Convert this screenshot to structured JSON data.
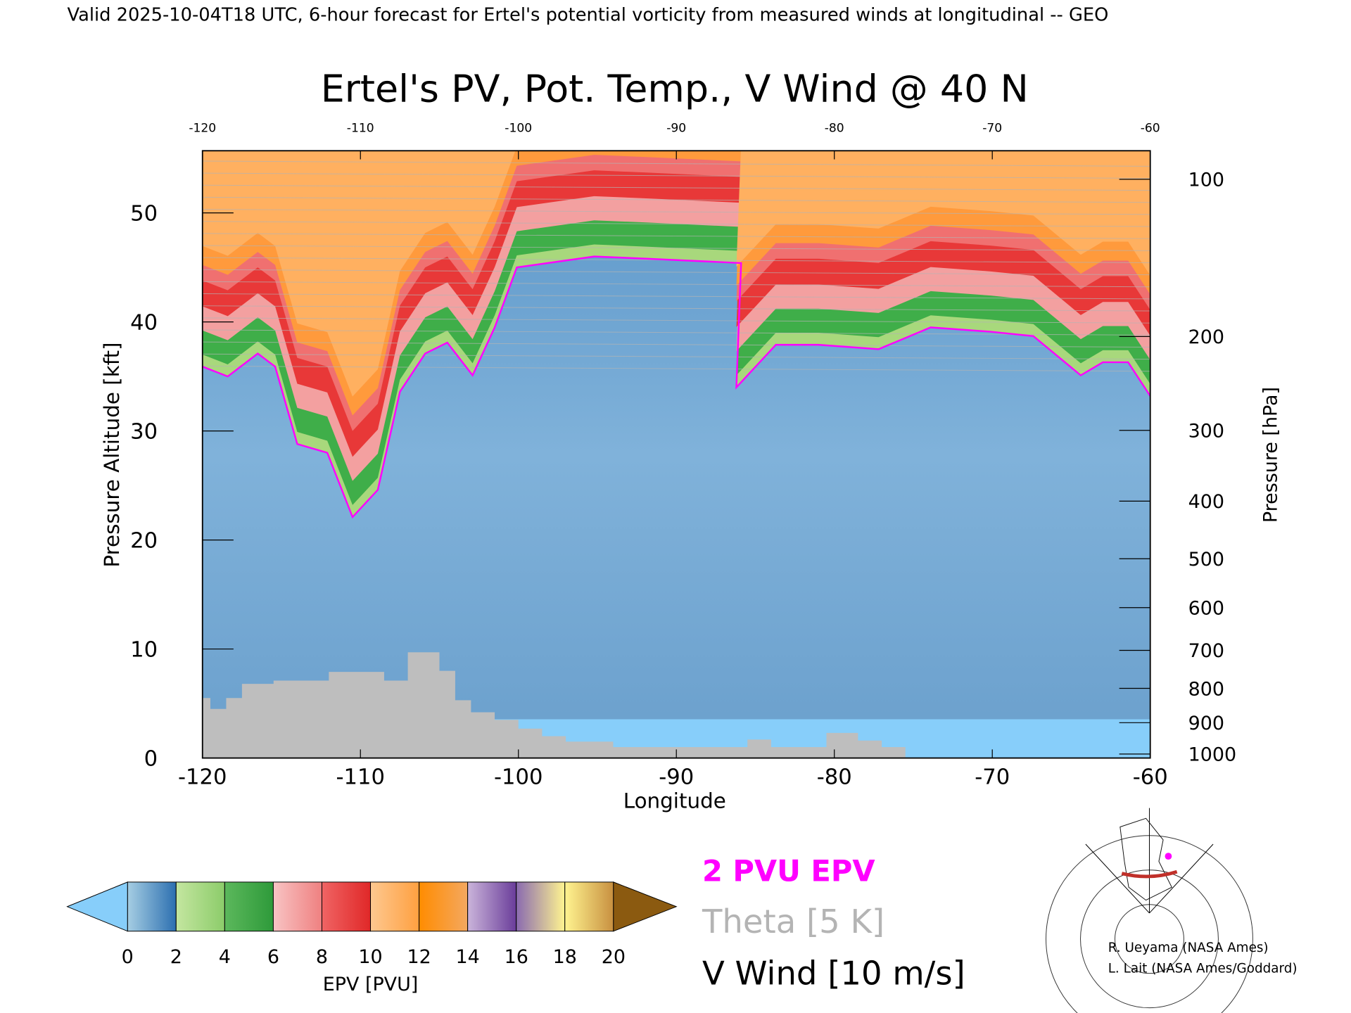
{
  "chart_data": {
    "type": "contour",
    "header": "Valid 2025-10-04T18 UTC, 6-hour forecast for Ertel's potential vorticity from measured winds at longitudinal -- GEO",
    "title": "Ertel's PV, Pot. Temp., V Wind @ 40 N",
    "xlabel": "Longitude",
    "ylabel": "Pressure Altitude [kft]",
    "y2label": "Pressure [hPa]",
    "xlim": [
      -120,
      -60
    ],
    "ylim": [
      0,
      55.7
    ],
    "xticks": [
      -120,
      -110,
      -100,
      -90,
      -80,
      -70,
      -60
    ],
    "yticks": [
      0,
      10,
      20,
      30,
      40,
      50
    ],
    "y2scale": "pressure",
    "y2ticks": [
      100,
      200,
      300,
      400,
      500,
      600,
      700,
      800,
      900,
      1000
    ],
    "series": [
      {
        "color": "#ff00ff",
        "x": [
          -120,
          -118.4,
          -116.5,
          -115.4,
          -114,
          -112.1,
          -110.5,
          -108.9,
          -107.5,
          -105.9,
          -104.5,
          -102.9,
          -101.5,
          -100.1,
          -95.2,
          -91.9,
          -85.9,
          -86.2,
          -83.7,
          -81,
          -77.2,
          -73.9,
          -70.1,
          -67.4,
          -64.4,
          -63,
          -61.4,
          -60
        ],
        "values": [
          35.9,
          35,
          37.1,
          35.9,
          28.8,
          28,
          22.1,
          24.6,
          33.6,
          37.1,
          38.1,
          35.1,
          39.5,
          45,
          46,
          45.8,
          45.4,
          34,
          37.9,
          37.9,
          37.5,
          39.5,
          39.1,
          38.7,
          35.1,
          36.3,
          36.3,
          33.2
        ]
      }
    ],
    "terrain": {
      "color": "#bebebe",
      "x": [
        -120,
        -119.5,
        -118.5,
        -117.5,
        -115.5,
        -112,
        -108.5,
        -107,
        -105,
        -104,
        -103,
        -101.5,
        -100,
        -98.5,
        -97,
        -94,
        -85.5,
        -84,
        -80.5,
        -78.5,
        -77,
        -75.5
      ],
      "values": [
        5.5,
        4.5,
        5.5,
        6.8,
        7.1,
        7.9,
        7.1,
        9.7,
        8,
        5.3,
        4.2,
        3.5,
        2.7,
        2,
        1.5,
        1,
        1.7,
        1,
        2.3,
        1.6,
        1,
        0
      ]
    },
    "legend": [
      {
        "label": "2 PVU EPV",
        "color": "#ff00ff"
      },
      {
        "label": "Theta [5 K]",
        "color": "#b4b4b4"
      },
      {
        "label": "V Wind [10 m/s]",
        "color": "#000000"
      }
    ],
    "colorbar": {
      "label": "EPV [PVU]",
      "ticks": [
        0,
        2,
        4,
        6,
        8,
        10,
        12,
        14,
        16,
        18,
        20
      ],
      "colors": [
        [
          "#a6cee3",
          "#2c6fb0"
        ],
        [
          "#c4e6a0",
          "#8ccc6a"
        ],
        [
          "#5cb85c",
          "#2e9a3a"
        ],
        [
          "#f8c4c4",
          "#ef8080"
        ],
        [
          "#f06464",
          "#e02828"
        ],
        [
          "#fdc890",
          "#ffa040"
        ],
        [
          "#ff8c00",
          "#f4a860"
        ],
        [
          "#cab4da",
          "#6a3d9a"
        ],
        [
          "#8a6ab0",
          "#fff490"
        ],
        [
          "#fff490",
          "#c89040"
        ]
      ],
      "under": "#87cefa",
      "over": "#8b5a10"
    },
    "credits": [
      "R. Ueyama (NASA Ames)",
      "L. Lait (NASA Ames/Goddard)"
    ]
  }
}
